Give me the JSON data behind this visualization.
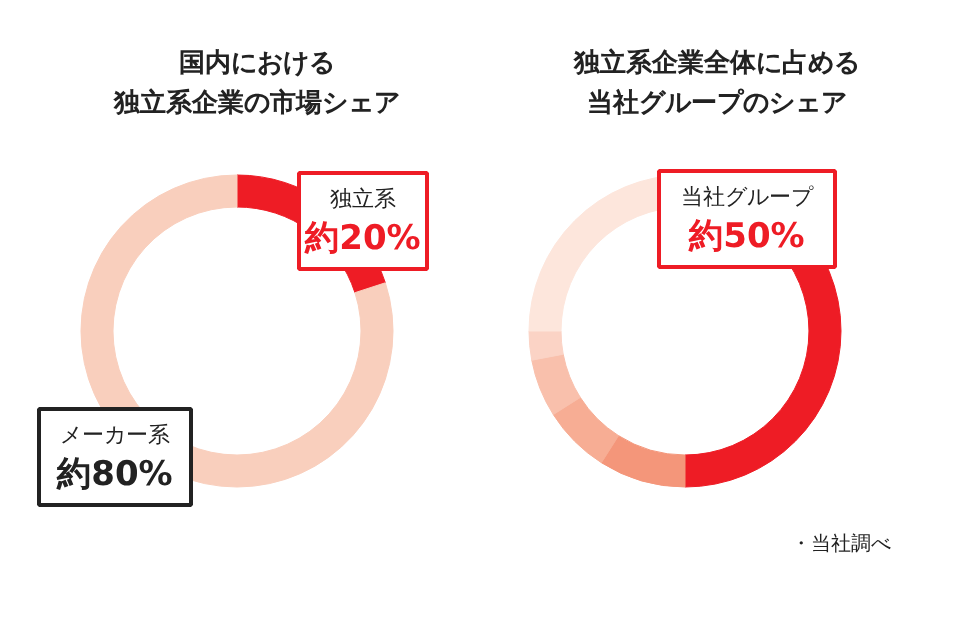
{
  "chart_data": [
    {
      "type": "donut",
      "title": "国内における",
      "subtitle": "独立系企業の市場シェア",
      "categories": [
        "独立系",
        "メーカー系"
      ],
      "values": [
        20,
        80
      ],
      "colors": [
        "#ee1c25",
        "#f9cfbd"
      ],
      "value_labels": [
        "約20%",
        "約80%"
      ]
    },
    {
      "type": "donut",
      "title": "独立系企業全体に占める",
      "subtitle": "当社グループのシェア",
      "categories": [
        "当社グループ",
        null,
        null,
        null,
        null,
        null
      ],
      "values": [
        50,
        9,
        7,
        6,
        3,
        25
      ],
      "colors": [
        "#ee1c25",
        "#f4967a",
        "#f7ad94",
        "#f9c0ac",
        "#fbd3c5",
        "#fde6dc"
      ],
      "value_labels": [
        "約50%",
        null,
        null,
        null,
        null,
        null
      ],
      "annotations": [
        "・当社調べ"
      ]
    }
  ]
}
